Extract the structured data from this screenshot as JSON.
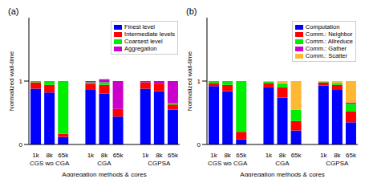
{
  "chart_data": [
    {
      "type": "bar",
      "title": "(a)",
      "x_label": "Aggregation methods & cores",
      "y_label": "Normalized wall-time",
      "categories": [
        "1k",
        "8k",
        "65k",
        null,
        "1k",
        "8k",
        "65k",
        null,
        "1k",
        "8k",
        "65k"
      ],
      "groups": [
        "CGS wo CGA",
        "CGA",
        "CGPSA"
      ],
      "stacked": true,
      "legend": "upper right",
      "ylim": [
        0,
        2
      ],
      "yticks": [
        0,
        1
      ],
      "series": [
        {
          "name": "Finest level",
          "color": "#0000ff",
          "values": [
            0.88,
            0.82,
            0.12,
            null,
            0.86,
            0.8,
            0.44,
            null,
            0.88,
            0.84,
            0.55
          ]
        },
        {
          "name": "Intermediate levels",
          "color": "#ff0000",
          "values": [
            0.1,
            0.12,
            0.05,
            null,
            0.1,
            0.14,
            0.12,
            null,
            0.1,
            0.12,
            0.08
          ]
        },
        {
          "name": "Coarsest level",
          "color": "#00ee00",
          "values": [
            0.02,
            0.06,
            0.83,
            null,
            0.02,
            0.04,
            0.0,
            null,
            0.0,
            0.0,
            0.02
          ]
        },
        {
          "name": "Aggregation",
          "color": "#cc00cc",
          "values": [
            0.0,
            0.0,
            0.0,
            null,
            0.02,
            0.05,
            0.44,
            null,
            0.02,
            0.04,
            0.35
          ]
        }
      ]
    },
    {
      "type": "bar",
      "title": "(b)",
      "x_label": "Aggregation methods & cores",
      "y_label": "Normalized wall-time",
      "categories": [
        "1k",
        "8k",
        "65k",
        null,
        "1k",
        "8k",
        "65k",
        null,
        "1k",
        "8k",
        "65k"
      ],
      "groups": [
        "CGS wo CGA",
        "CGA",
        "CGPSA"
      ],
      "stacked": true,
      "legend": "upper right",
      "ylim": [
        0,
        2
      ],
      "yticks": [
        0,
        1
      ],
      "series": [
        {
          "name": "Computation",
          "color": "#0000ff",
          "values": [
            0.92,
            0.84,
            0.08,
            null,
            0.9,
            0.74,
            0.22,
            null,
            0.93,
            0.86,
            0.35
          ]
        },
        {
          "name": "Comm.: Neighbor",
          "color": "#ff0000",
          "values": [
            0.05,
            0.1,
            0.12,
            null,
            0.07,
            0.16,
            0.15,
            null,
            0.05,
            0.08,
            0.17
          ]
        },
        {
          "name": "Comm.: Allreduce",
          "color": "#00ee00",
          "values": [
            0.03,
            0.06,
            0.8,
            null,
            0.02,
            0.06,
            0.18,
            null,
            0.01,
            0.03,
            0.12
          ]
        },
        {
          "name": "Comm.: Gather",
          "color": "#cc00cc",
          "values": [
            0.0,
            0.0,
            0.0,
            null,
            0.0,
            0.0,
            0.0,
            null,
            0.0,
            0.0,
            0.02
          ]
        },
        {
          "name": "Comm.: Scatter",
          "color": "#ffb833",
          "values": [
            0.0,
            0.0,
            0.0,
            null,
            0.01,
            0.04,
            0.45,
            null,
            0.01,
            0.03,
            0.34
          ]
        }
      ]
    }
  ]
}
